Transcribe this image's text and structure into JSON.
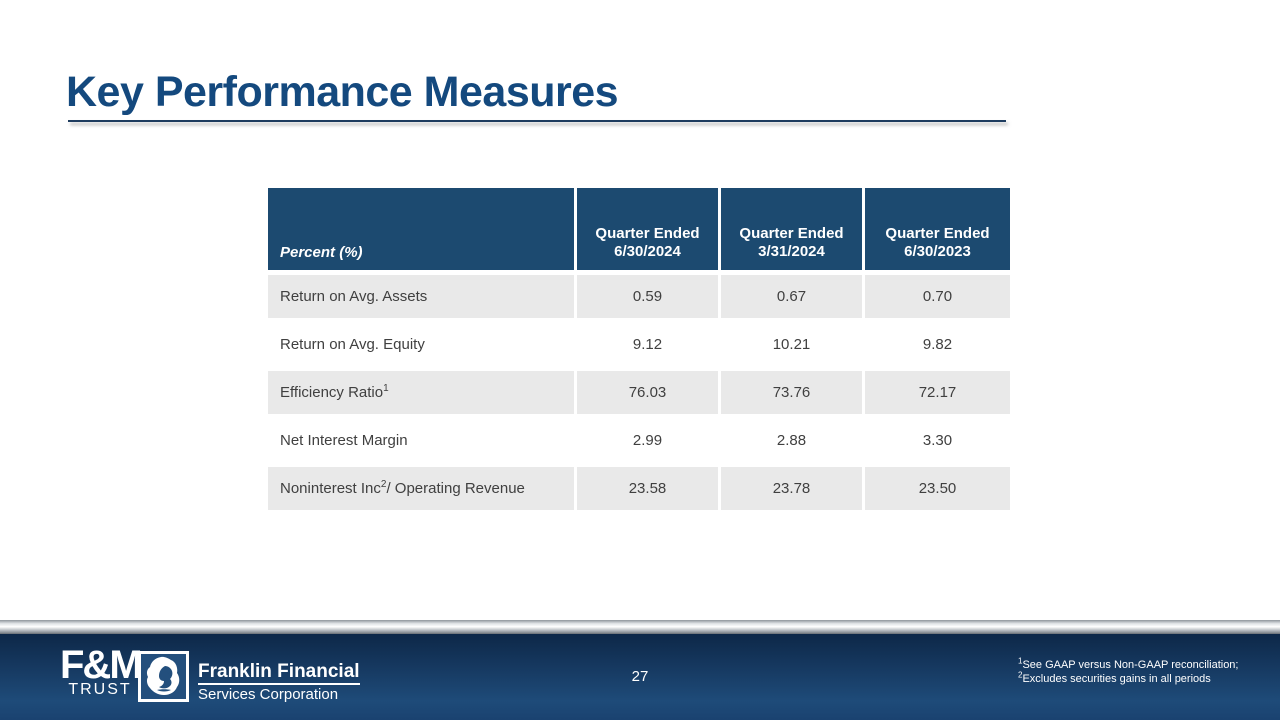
{
  "title": "Key Performance Measures",
  "table": {
    "corner_label": "Percent (%)",
    "columns": [
      {
        "label": "Quarter Ended",
        "date": "6/30/2024"
      },
      {
        "label": "Quarter Ended",
        "date": "3/31/2024"
      },
      {
        "label": "Quarter Ended",
        "date": "6/30/2023"
      }
    ],
    "rows": [
      {
        "label": {
          "text": "Return on Avg. Assets",
          "sup": "",
          "after": ""
        },
        "values": [
          "0.59",
          "0.67",
          "0.70"
        ]
      },
      {
        "label": {
          "text": "Return on Avg. Equity",
          "sup": "",
          "after": ""
        },
        "values": [
          "9.12",
          "10.21",
          "9.82"
        ]
      },
      {
        "label": {
          "text": "Efficiency Ratio",
          "sup": "1",
          "after": ""
        },
        "values": [
          "76.03",
          "73.76",
          "72.17"
        ]
      },
      {
        "label": {
          "text": "Net Interest Margin",
          "sup": "",
          "after": ""
        },
        "values": [
          "2.99",
          "2.88",
          "3.30"
        ]
      },
      {
        "label": {
          "text": "Noninterest Inc",
          "sup": "2",
          "after": " / Operating Revenue"
        },
        "values": [
          "23.58",
          "23.78",
          "23.50"
        ]
      }
    ]
  },
  "footer": {
    "page_number": "27",
    "footnotes": [
      {
        "sup": "1",
        "text": "See GAAP versus Non-GAAP reconciliation;"
      },
      {
        "sup": "2",
        "text": "Excludes securities gains in all periods"
      }
    ],
    "logos": {
      "fm_trust": {
        "line1": "F&M",
        "line2": "TRUST"
      },
      "franklin": {
        "line1": "Franklin Financial",
        "line2": "Services Corporation"
      },
      "lion_icon": "lion-head-icon"
    }
  },
  "colors": {
    "title_blue": "#14497E",
    "table_header_navy": "#1C4A70",
    "row_shade_gray": "#E9E9E9",
    "cell_text": "#404040",
    "footer_navy_top": "#0D2848",
    "footer_navy_bottom": "#1E4B79",
    "silver_bar": "#C2C7CB"
  }
}
